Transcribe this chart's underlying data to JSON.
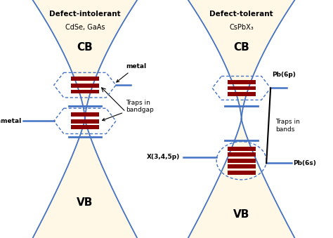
{
  "bg_color": "#FFF8E7",
  "left_title": "Defect-intolerant",
  "left_subtitle": "CdSe, GaAs",
  "right_title": "Defect-tolerant",
  "right_subtitle": "CsPbX₃",
  "left_cb": "CB",
  "left_vb": "VB",
  "right_cb": "CB",
  "right_vb": "VB",
  "band_color": "#4472C4",
  "trap_color": "#8B0000",
  "dashed_color": "#4472C4",
  "figure_bg": "#FFFFFF",
  "font_color": "#000000"
}
